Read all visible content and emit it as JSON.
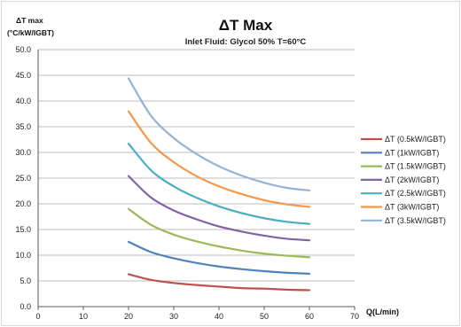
{
  "chart_data": {
    "type": "line",
    "title": "ΔT Max",
    "subtitle": "Inlet Fluid: Glycol 50% T=60°C",
    "ylabel_line1": "ΔT max",
    "ylabel_line2": "(°C/kW/IGBT)",
    "xlabel": "Q(L/min)",
    "xlim": [
      0,
      70
    ],
    "ylim": [
      0,
      50
    ],
    "x_ticks": [
      "0",
      "10",
      "20",
      "30",
      "40",
      "50",
      "60",
      "70"
    ],
    "y_ticks": [
      "0.0",
      "5.0",
      "10.0",
      "15.0",
      "20.0",
      "25.0",
      "30.0",
      "35.0",
      "40.0",
      "45.0",
      "50.0"
    ],
    "grid": "horizontal",
    "legend_position": "right",
    "x": [
      20,
      25,
      30,
      35,
      40,
      45,
      50,
      55,
      60
    ],
    "series": [
      {
        "name": "ΔT (0.5kW/IGBT)",
        "color": "#c0504d",
        "values": [
          6.3,
          5.2,
          4.6,
          4.2,
          3.9,
          3.6,
          3.5,
          3.3,
          3.2
        ]
      },
      {
        "name": "ΔT (1kW/IGBT)",
        "color": "#4f81bd",
        "values": [
          12.6,
          10.6,
          9.4,
          8.5,
          7.8,
          7.3,
          6.9,
          6.6,
          6.4
        ]
      },
      {
        "name": "ΔT (1.5kW/IGBT)",
        "color": "#9bbb59",
        "values": [
          19.0,
          15.9,
          14.0,
          12.7,
          11.7,
          10.9,
          10.3,
          9.9,
          9.6
        ]
      },
      {
        "name": "ΔT (2kW/IGBT)",
        "color": "#8064a2",
        "values": [
          25.4,
          21.2,
          18.7,
          17.0,
          15.6,
          14.6,
          13.8,
          13.2,
          12.9
        ]
      },
      {
        "name": "ΔT (2,5kW/IGBT)",
        "color": "#4bacc6",
        "values": [
          31.7,
          26.5,
          23.4,
          21.2,
          19.5,
          18.2,
          17.2,
          16.5,
          16.1
        ]
      },
      {
        "name": "ΔT (3kW/IGBT)",
        "color": "#f79646",
        "values": [
          38.0,
          31.8,
          28.1,
          25.4,
          23.4,
          21.9,
          20.7,
          19.9,
          19.4
        ]
      },
      {
        "name": "ΔT (3.5kW/IGBT)",
        "color": "#95b3d7",
        "values": [
          44.4,
          37.1,
          32.8,
          29.7,
          27.3,
          25.5,
          24.1,
          23.1,
          22.6
        ]
      }
    ]
  }
}
